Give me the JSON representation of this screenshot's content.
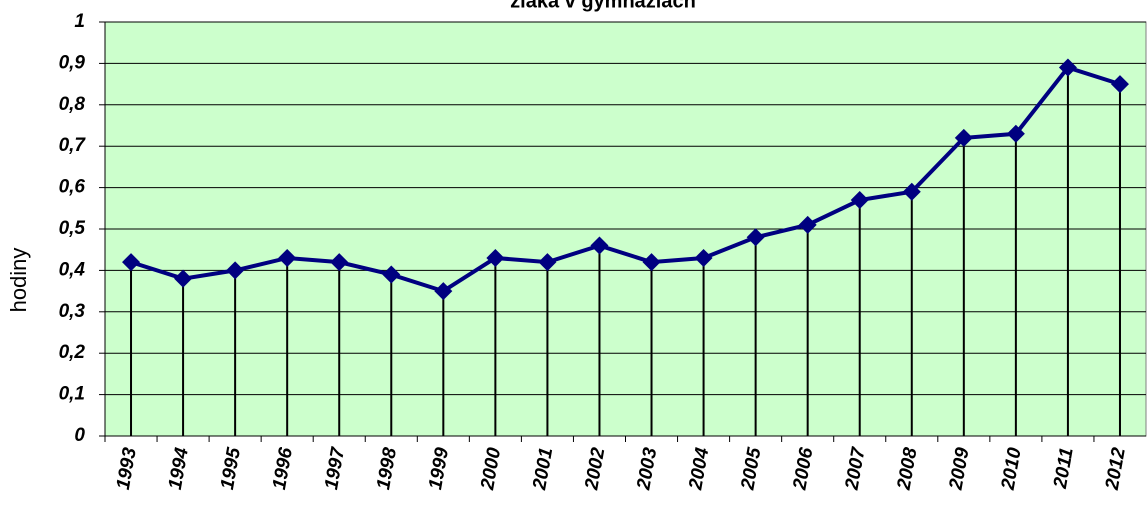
{
  "chart_data": {
    "type": "line",
    "title": "žiaka v gymnáziách",
    "y_label": "hodiny",
    "categories": [
      "1993",
      "1994",
      "1995",
      "1996",
      "1997",
      "1998",
      "1999",
      "2000",
      "2001",
      "2002",
      "2003",
      "2004",
      "2005",
      "2006",
      "2007",
      "2008",
      "2009",
      "2010",
      "2011",
      "2012"
    ],
    "series": [
      {
        "name": "hodiny",
        "color": "#000080",
        "values": [
          0.42,
          0.38,
          0.4,
          0.43,
          0.42,
          0.39,
          0.35,
          0.43,
          0.42,
          0.46,
          0.42,
          0.43,
          0.48,
          0.51,
          0.57,
          0.59,
          0.72,
          0.73,
          0.89,
          0.85
        ]
      }
    ],
    "ylim": [
      0,
      1
    ],
    "yticks": [
      {
        "value": 0,
        "label": "0"
      },
      {
        "value": 0.1,
        "label": "0,1"
      },
      {
        "value": 0.2,
        "label": "0,2"
      },
      {
        "value": 0.3,
        "label": "0,3"
      },
      {
        "value": 0.4,
        "label": "0,4"
      },
      {
        "value": 0.5,
        "label": "0,5"
      },
      {
        "value": 0.6,
        "label": "0,6"
      },
      {
        "value": 0.7,
        "label": "0,7"
      },
      {
        "value": 0.8,
        "label": "0,8"
      },
      {
        "value": 0.9,
        "label": "0,9"
      },
      {
        "value": 1,
        "label": "1"
      }
    ],
    "grid": true,
    "background": "#ccffcc",
    "drop_lines": true
  }
}
